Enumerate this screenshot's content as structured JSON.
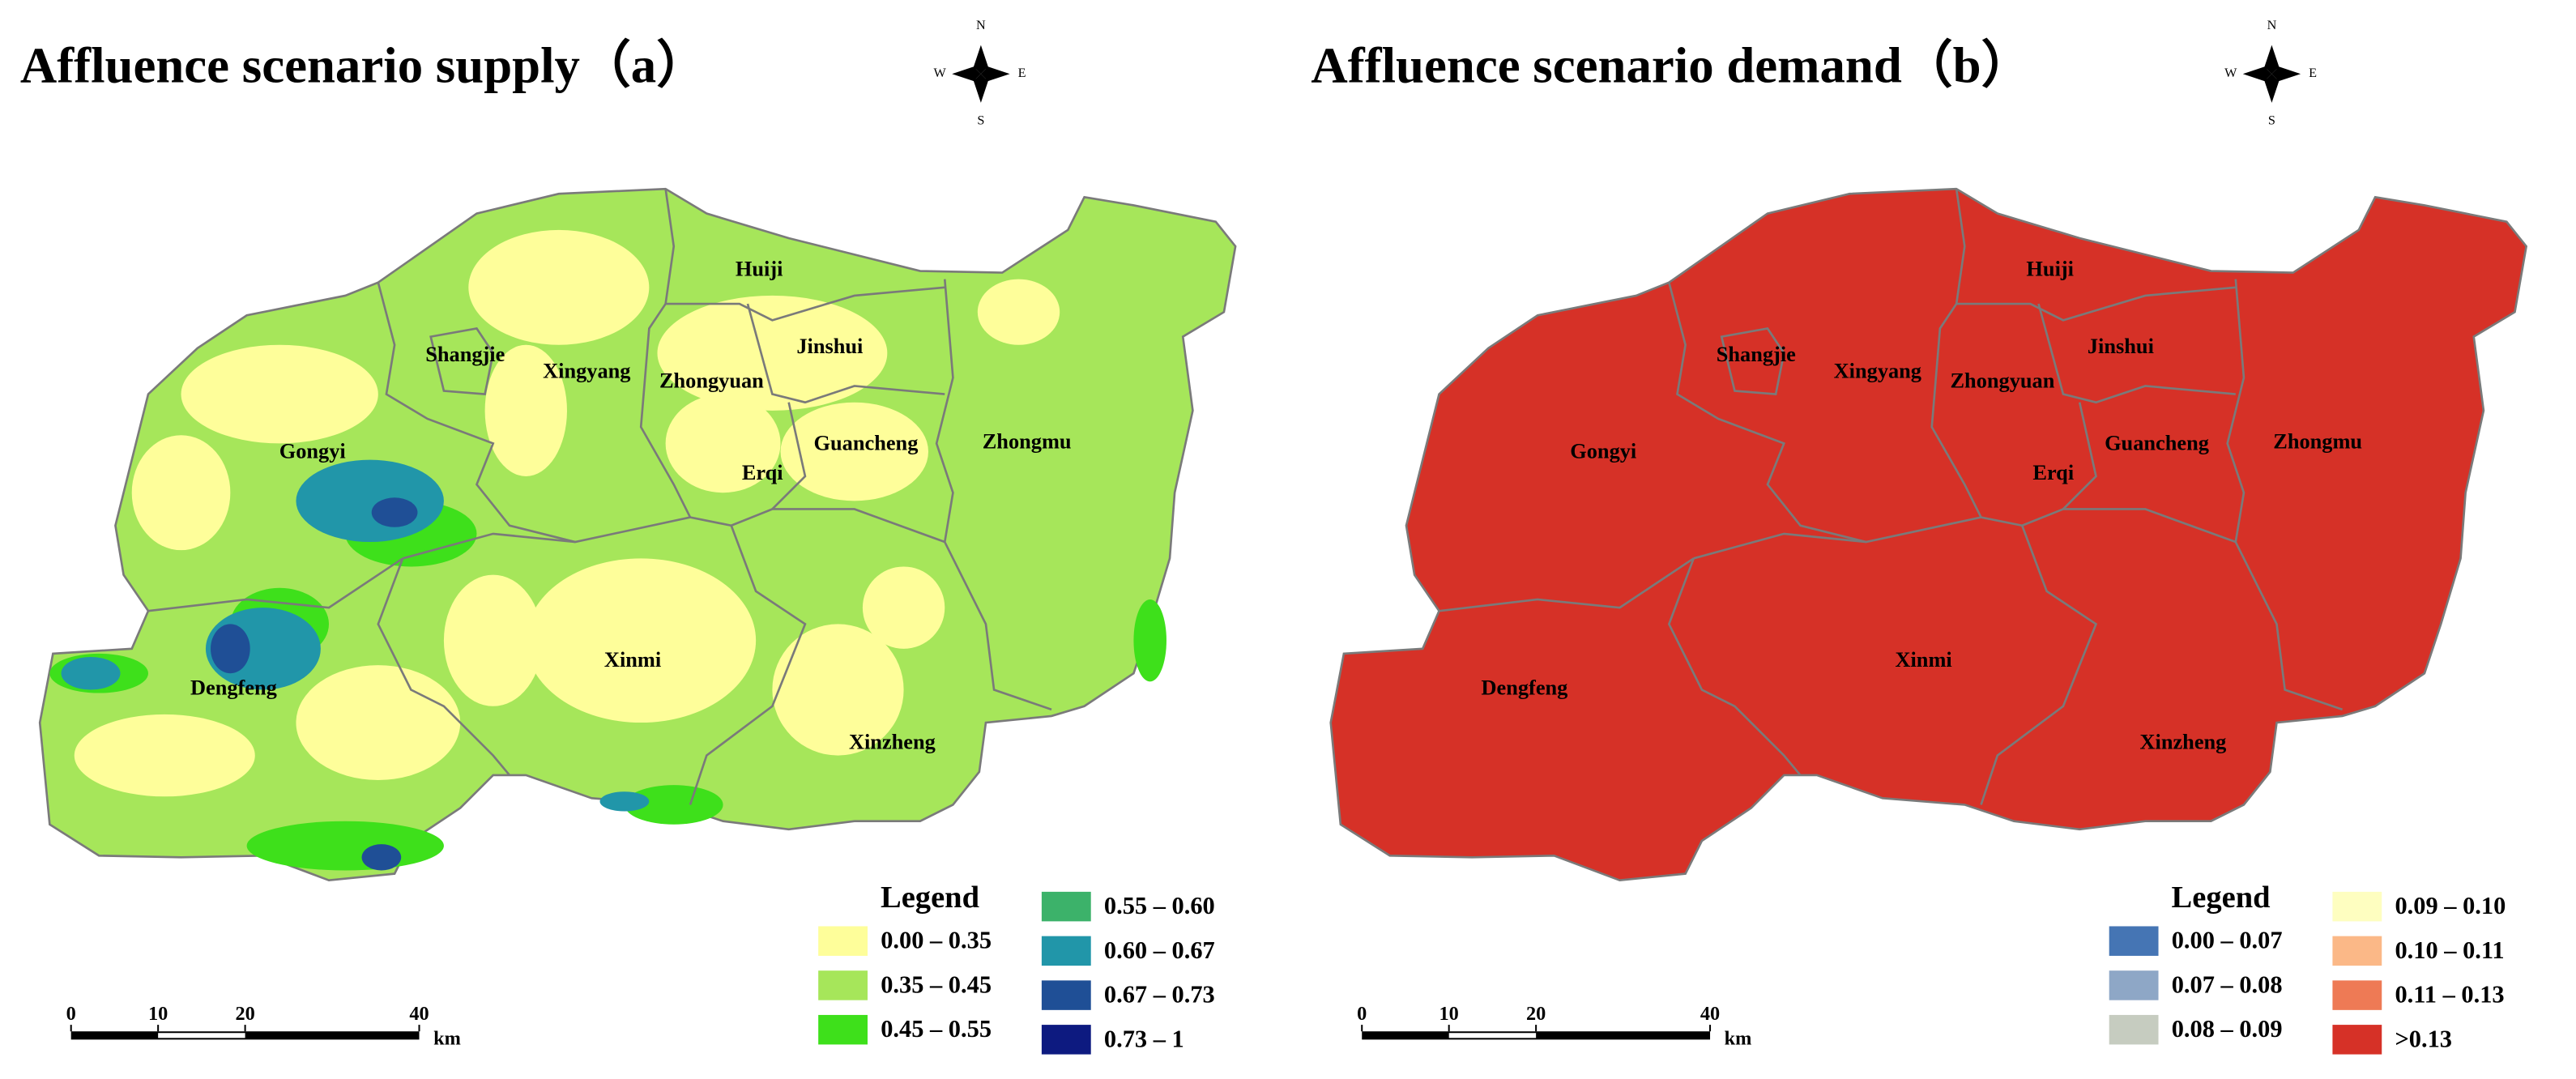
{
  "panels": [
    {
      "title": "Affluence scenario supply（a）",
      "compass": {
        "n": "N",
        "s": "S",
        "w": "W",
        "e": "E"
      },
      "districts": [
        "Huiji",
        "Jinshui",
        "Shangjie",
        "Xingyang",
        "Zhongyuan",
        "Gongyi",
        "Guancheng",
        "Zhongmu",
        "Erqi",
        "Xinmi",
        "Dengfeng",
        "Xinzheng"
      ],
      "legend": {
        "title": "Legend",
        "items": [
          {
            "label": "0.00 – 0.35",
            "color": "#fefe9a"
          },
          {
            "label": "0.35 – 0.45",
            "color": "#a6e65a"
          },
          {
            "label": "0.45 – 0.55",
            "color": "#3ee01b"
          },
          {
            "label": "0.55 – 0.60",
            "color": "#3cb26a"
          },
          {
            "label": "0.60 – 0.67",
            "color": "#2196a9"
          },
          {
            "label": "0.67 – 0.73",
            "color": "#1f4f96"
          },
          {
            "label": "0.73 – 1",
            "color": "#0d1a80"
          }
        ]
      },
      "scale_bar": {
        "ticks": [
          0,
          10,
          20,
          40
        ],
        "unit": "km"
      }
    },
    {
      "title": "Affluence scenario demand（b）",
      "compass": {
        "n": "N",
        "s": "S",
        "w": "W",
        "e": "E"
      },
      "districts": [
        "Huiji",
        "Jinshui",
        "Shangjie",
        "Xingyang",
        "Zhongyuan",
        "Gongyi",
        "Guancheng",
        "Zhongmu",
        "Erqi",
        "Xinmi",
        "Dengfeng",
        "Xinzheng"
      ],
      "legend": {
        "title": "Legend",
        "items": [
          {
            "label": "0.00 – 0.07",
            "color": "#4575b4"
          },
          {
            "label": "0.07 – 0.08",
            "color": "#8ea7c6"
          },
          {
            "label": "0.08 – 0.09",
            "color": "#c6ccc0"
          },
          {
            "label": "0.09 – 0.10",
            "color": "#fefec0"
          },
          {
            "label": "0.10 – 0.11",
            "color": "#fbb887"
          },
          {
            "label": "0.11 – 0.13",
            "color": "#ee7a55"
          },
          {
            "label": ">0.13",
            "color": "#d63127"
          }
        ]
      },
      "scale_bar": {
        "ticks": [
          0,
          10,
          20,
          40
        ],
        "unit": "km"
      }
    }
  ]
}
